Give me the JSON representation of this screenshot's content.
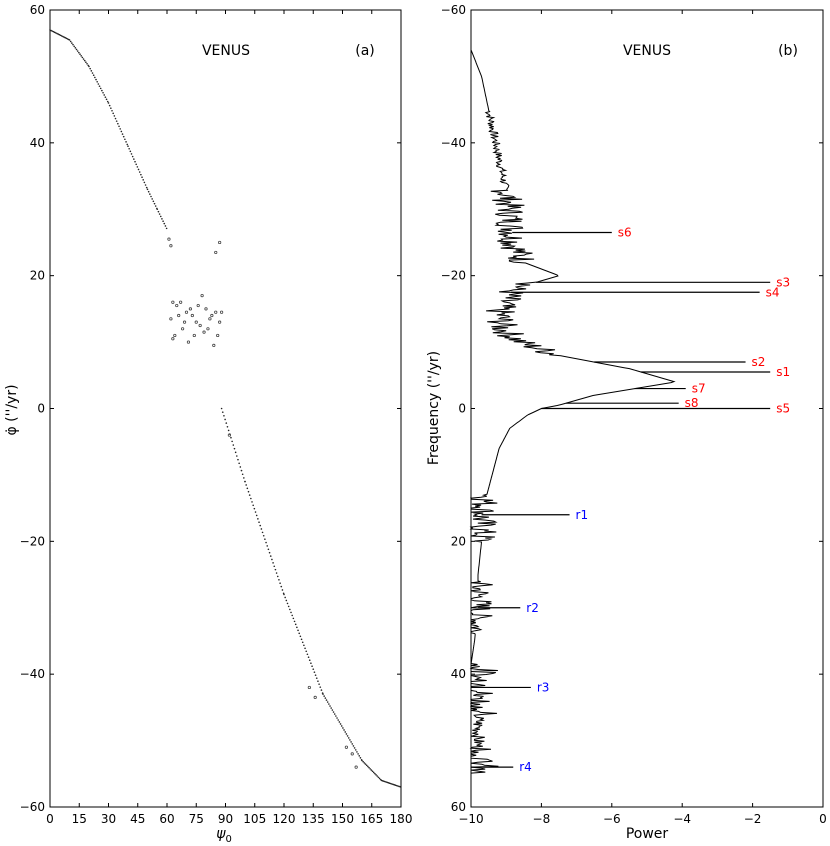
{
  "chart_data": [
    {
      "type": "scatter",
      "panel_label": "(a)",
      "title": "VENUS",
      "xlabel": "ψ",
      "xlabel_sub": "0",
      "ylabel": "φ̇ (''/yr)",
      "xlim": [
        0,
        180
      ],
      "ylim": [
        -60,
        60
      ],
      "xticks": [
        0,
        15,
        30,
        45,
        60,
        75,
        90,
        105,
        120,
        135,
        150,
        165,
        180
      ],
      "yticks": [
        -60,
        -40,
        -20,
        0,
        20,
        40,
        60
      ],
      "curve_upper": {
        "x": [
          0,
          10,
          20,
          30,
          40,
          50,
          55,
          60
        ],
        "y": [
          57,
          55.5,
          51.5,
          46,
          39.5,
          33,
          30,
          27
        ]
      },
      "curve_lower": {
        "x": [
          88,
          100,
          120,
          140,
          160,
          170,
          180
        ],
        "y": [
          0,
          -11,
          -28,
          -43,
          -53,
          -56,
          -57
        ]
      },
      "chaotic_points": [
        {
          "x": 63,
          "y": 16
        },
        {
          "x": 65,
          "y": 15.5
        },
        {
          "x": 67,
          "y": 16
        },
        {
          "x": 70,
          "y": 14.5
        },
        {
          "x": 72,
          "y": 15
        },
        {
          "x": 75,
          "y": 13
        },
        {
          "x": 78,
          "y": 17
        },
        {
          "x": 80,
          "y": 15
        },
        {
          "x": 83,
          "y": 14
        },
        {
          "x": 85,
          "y": 14.5
        },
        {
          "x": 87,
          "y": 13
        },
        {
          "x": 64,
          "y": 11
        },
        {
          "x": 68,
          "y": 12
        },
        {
          "x": 71,
          "y": 10
        },
        {
          "x": 74,
          "y": 11
        },
        {
          "x": 77,
          "y": 12.5
        },
        {
          "x": 79,
          "y": 11.5
        },
        {
          "x": 82,
          "y": 13.5
        },
        {
          "x": 84,
          "y": 9.5
        },
        {
          "x": 86,
          "y": 11
        },
        {
          "x": 66,
          "y": 14
        },
        {
          "x": 69,
          "y": 13
        },
        {
          "x": 73,
          "y": 14
        },
        {
          "x": 76,
          "y": 15.5
        },
        {
          "x": 81,
          "y": 12
        },
        {
          "x": 62,
          "y": 13.5
        },
        {
          "x": 63,
          "y": 10.5
        },
        {
          "x": 88,
          "y": 14.5
        },
        {
          "x": 85,
          "y": 23.5
        },
        {
          "x": 87,
          "y": 25
        },
        {
          "x": 61,
          "y": 25.5
        },
        {
          "x": 62,
          "y": 24.5
        },
        {
          "x": 92,
          "y": -4
        },
        {
          "x": 133,
          "y": -42
        },
        {
          "x": 136,
          "y": -43.5
        },
        {
          "x": 152,
          "y": -51
        },
        {
          "x": 155,
          "y": -52
        },
        {
          "x": 157,
          "y": -54
        }
      ]
    },
    {
      "type": "line",
      "panel_label": "(b)",
      "title": "VENUS",
      "xlabel": "Power",
      "ylabel": "Frequency (''/yr)",
      "xlim": [
        -10,
        0
      ],
      "ylim": [
        60,
        -60
      ],
      "xticks": [
        -10,
        -8,
        -6,
        -4,
        -2,
        0
      ],
      "yticks": [
        -60,
        -40,
        -20,
        0,
        20,
        40,
        60
      ],
      "base_curve": {
        "freq": [
          -54,
          -50,
          -45,
          -40,
          -35,
          -30,
          -25,
          -22,
          -20,
          -18,
          -15,
          -12,
          -10,
          -8,
          -6,
          -4,
          -2,
          -0.5,
          0,
          1,
          3,
          6,
          10,
          14,
          16,
          20,
          25,
          30,
          35,
          38.5
        ],
        "power": [
          -10,
          -9.7,
          -9.5,
          -9.3,
          -9.1,
          -8.9,
          -8.8,
          -8.5,
          -7.5,
          -8.8,
          -9.2,
          -9.1,
          -8.6,
          -7.5,
          -5.5,
          -4.2,
          -6.5,
          -7.5,
          -8,
          -8.4,
          -8.9,
          -9.2,
          -9.4,
          -9.6,
          -9.7,
          -9.7,
          -9.8,
          -9.8,
          -9.9,
          -10
        ]
      },
      "peaks": [
        {
          "label": "s1",
          "freq": -5.5,
          "power": -1.5,
          "color": "#ff0000"
        },
        {
          "label": "s2",
          "freq": -7,
          "power": -2.2,
          "color": "#ff0000"
        },
        {
          "label": "s3",
          "freq": -19,
          "power": -1.5,
          "color": "#ff0000"
        },
        {
          "label": "s4",
          "freq": -17.5,
          "power": -1.8,
          "color": "#ff0000"
        },
        {
          "label": "s5",
          "freq": 0,
          "power": -1.5,
          "color": "#ff0000"
        },
        {
          "label": "s6",
          "freq": -26.5,
          "power": -6,
          "color": "#ff0000"
        },
        {
          "label": "s7",
          "freq": -3,
          "power": -3.9,
          "color": "#ff0000"
        },
        {
          "label": "s8",
          "freq": -0.8,
          "power": -4.1,
          "color": "#ff0000"
        },
        {
          "label": "r1",
          "freq": 16,
          "power": -7.2,
          "color": "#0000ff"
        },
        {
          "label": "r2",
          "freq": 30,
          "power": -8.6,
          "color": "#0000ff"
        },
        {
          "label": "r3",
          "freq": 42,
          "power": -8.3,
          "color": "#0000ff"
        },
        {
          "label": "r4",
          "freq": 54,
          "power": -8.8,
          "color": "#0000ff"
        }
      ]
    }
  ]
}
